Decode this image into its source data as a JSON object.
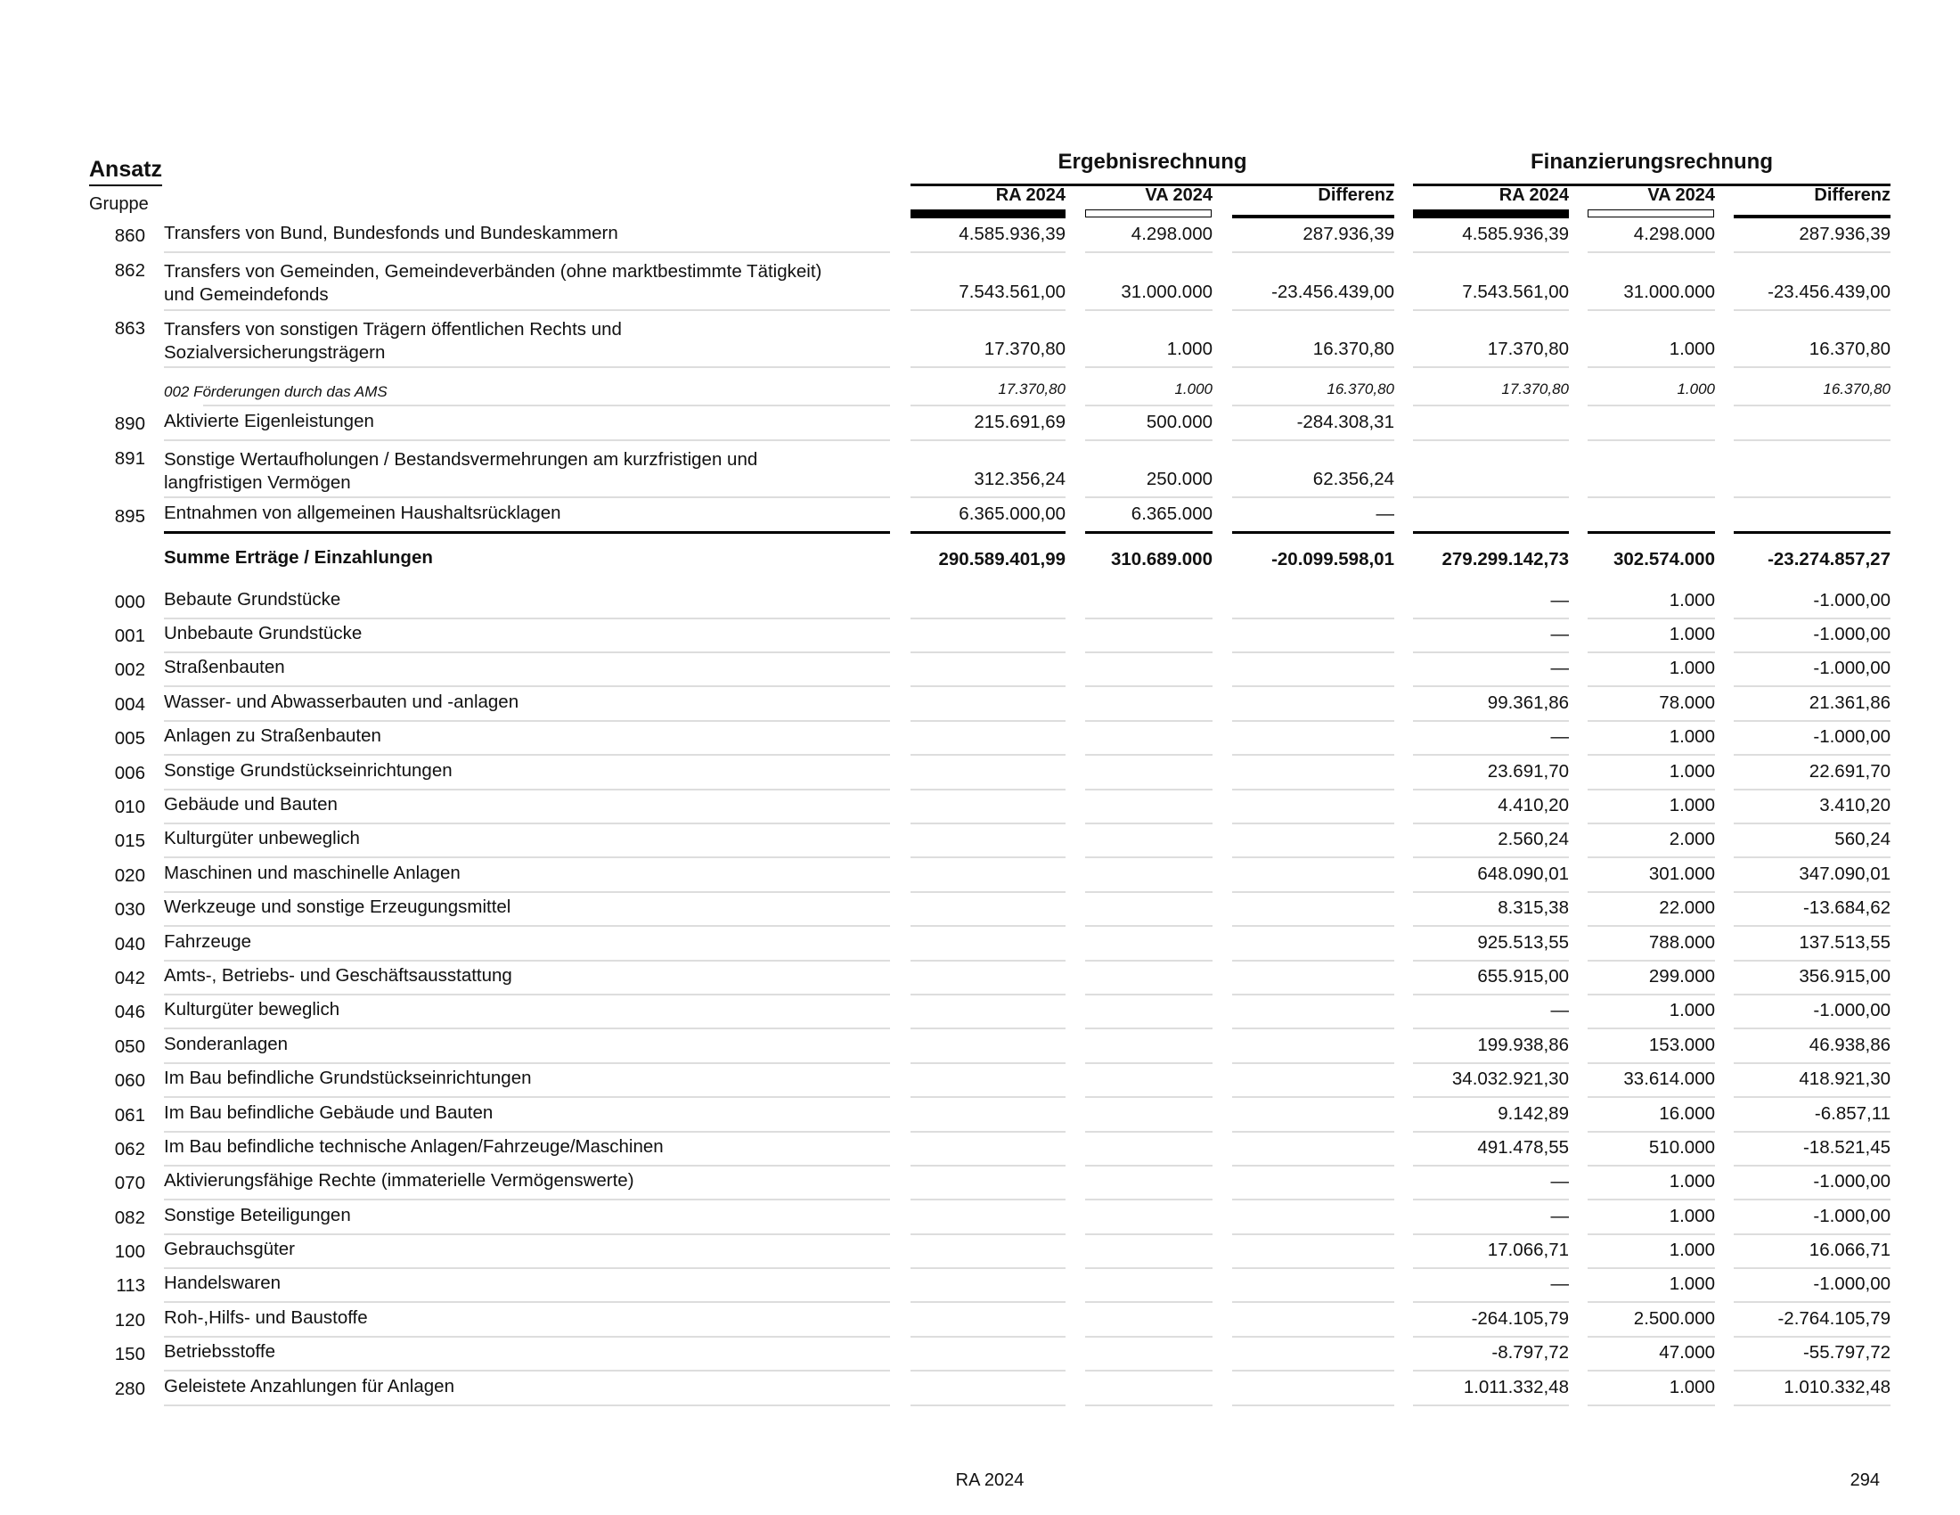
{
  "header": {
    "ansatz": "Ansatz",
    "gruppe": "Gruppe",
    "groups": [
      "Ergebnisrechnung",
      "Finanzierungsrechnung"
    ],
    "columns": [
      "RA 2024",
      "VA 2024",
      "Differenz",
      "RA 2024",
      "VA 2024",
      "Differenz"
    ]
  },
  "rows": [
    {
      "code": "860",
      "lines": [
        "Transfers von Bund, Bundesfonds und Bundeskammern"
      ],
      "values": [
        "4.585.936,39",
        "4.298.000",
        "287.936,39",
        "4.585.936,39",
        "4.298.000",
        "287.936,39"
      ]
    },
    {
      "code": "862",
      "lines": [
        "Transfers von Gemeinden, Gemeindeverbänden (ohne marktbestimmte Tätigkeit)",
        "und Gemeindefonds"
      ],
      "values": [
        "7.543.561,00",
        "31.000.000",
        "-23.456.439,00",
        "7.543.561,00",
        "31.000.000",
        "-23.456.439,00"
      ]
    },
    {
      "code": "863",
      "lines": [
        "Transfers von sonstigen Trägern öffentlichen Rechts und",
        "Sozialversicherungsträgern"
      ],
      "values": [
        "17.370,80",
        "1.000",
        "16.370,80",
        "17.370,80",
        "1.000",
        "16.370,80"
      ]
    },
    {
      "code": "",
      "type": "sub",
      "lines": [
        "002  Förderungen durch das AMS"
      ],
      "values": [
        "17.370,80",
        "1.000",
        "16.370,80",
        "17.370,80",
        "1.000",
        "16.370,80"
      ]
    },
    {
      "code": "890",
      "lines": [
        "Aktivierte Eigenleistungen"
      ],
      "values": [
        "215.691,69",
        "500.000",
        "-284.308,31",
        "",
        "",
        ""
      ]
    },
    {
      "code": "891",
      "lines": [
        "Sonstige Wertaufholungen / Bestandsvermehrungen am kurzfristigen und",
        "langfristigen Vermögen"
      ],
      "values": [
        "312.356,24",
        "250.000",
        "62.356,24",
        "",
        "",
        ""
      ]
    },
    {
      "code": "895",
      "type": "thick",
      "lines": [
        "Entnahmen von allgemeinen Haushaltsrücklagen"
      ],
      "values": [
        "6.365.000,00",
        "6.365.000",
        "—",
        "",
        "",
        ""
      ]
    },
    {
      "code": "",
      "type": "sum",
      "lines": [
        "Summe Erträge / Einzahlungen"
      ],
      "values": [
        "290.589.401,99",
        "310.689.000",
        "-20.099.598,01",
        "279.299.142,73",
        "302.574.000",
        "-23.274.857,27"
      ]
    },
    {
      "code": "000",
      "lines": [
        "Bebaute Grundstücke"
      ],
      "values": [
        "",
        "",
        "",
        "—",
        "1.000",
        "-1.000,00"
      ]
    },
    {
      "code": "001",
      "lines": [
        "Unbebaute Grundstücke"
      ],
      "values": [
        "",
        "",
        "",
        "—",
        "1.000",
        "-1.000,00"
      ]
    },
    {
      "code": "002",
      "lines": [
        "Straßenbauten"
      ],
      "values": [
        "",
        "",
        "",
        "—",
        "1.000",
        "-1.000,00"
      ]
    },
    {
      "code": "004",
      "lines": [
        "Wasser- und Abwasserbauten und -anlagen"
      ],
      "values": [
        "",
        "",
        "",
        "99.361,86",
        "78.000",
        "21.361,86"
      ]
    },
    {
      "code": "005",
      "lines": [
        "Anlagen zu Straßenbauten"
      ],
      "values": [
        "",
        "",
        "",
        "—",
        "1.000",
        "-1.000,00"
      ]
    },
    {
      "code": "006",
      "lines": [
        "Sonstige Grundstückseinrichtungen"
      ],
      "values": [
        "",
        "",
        "",
        "23.691,70",
        "1.000",
        "22.691,70"
      ]
    },
    {
      "code": "010",
      "lines": [
        "Gebäude und Bauten"
      ],
      "values": [
        "",
        "",
        "",
        "4.410,20",
        "1.000",
        "3.410,20"
      ]
    },
    {
      "code": "015",
      "lines": [
        "Kulturgüter unbeweglich"
      ],
      "values": [
        "",
        "",
        "",
        "2.560,24",
        "2.000",
        "560,24"
      ]
    },
    {
      "code": "020",
      "lines": [
        "Maschinen und maschinelle Anlagen"
      ],
      "values": [
        "",
        "",
        "",
        "648.090,01",
        "301.000",
        "347.090,01"
      ]
    },
    {
      "code": "030",
      "lines": [
        "Werkzeuge und sonstige Erzeugungsmittel"
      ],
      "values": [
        "",
        "",
        "",
        "8.315,38",
        "22.000",
        "-13.684,62"
      ]
    },
    {
      "code": "040",
      "lines": [
        "Fahrzeuge"
      ],
      "values": [
        "",
        "",
        "",
        "925.513,55",
        "788.000",
        "137.513,55"
      ]
    },
    {
      "code": "042",
      "lines": [
        "Amts-, Betriebs- und Geschäftsausstattung"
      ],
      "values": [
        "",
        "",
        "",
        "655.915,00",
        "299.000",
        "356.915,00"
      ]
    },
    {
      "code": "046",
      "lines": [
        "Kulturgüter beweglich"
      ],
      "values": [
        "",
        "",
        "",
        "—",
        "1.000",
        "-1.000,00"
      ]
    },
    {
      "code": "050",
      "lines": [
        "Sonderanlagen"
      ],
      "values": [
        "",
        "",
        "",
        "199.938,86",
        "153.000",
        "46.938,86"
      ]
    },
    {
      "code": "060",
      "lines": [
        "Im Bau befindliche Grundstückseinrichtungen"
      ],
      "values": [
        "",
        "",
        "",
        "34.032.921,30",
        "33.614.000",
        "418.921,30"
      ]
    },
    {
      "code": "061",
      "lines": [
        "Im Bau befindliche Gebäude und Bauten"
      ],
      "values": [
        "",
        "",
        "",
        "9.142,89",
        "16.000",
        "-6.857,11"
      ]
    },
    {
      "code": "062",
      "lines": [
        "Im Bau befindliche technische Anlagen/Fahrzeuge/Maschinen"
      ],
      "values": [
        "",
        "",
        "",
        "491.478,55",
        "510.000",
        "-18.521,45"
      ]
    },
    {
      "code": "070",
      "lines": [
        "Aktivierungsfähige Rechte (immaterielle Vermögenswerte)"
      ],
      "values": [
        "",
        "",
        "",
        "—",
        "1.000",
        "-1.000,00"
      ]
    },
    {
      "code": "082",
      "lines": [
        "Sonstige Beteiligungen"
      ],
      "values": [
        "",
        "",
        "",
        "—",
        "1.000",
        "-1.000,00"
      ]
    },
    {
      "code": "100",
      "lines": [
        "Gebrauchsgüter"
      ],
      "values": [
        "",
        "",
        "",
        "17.066,71",
        "1.000",
        "16.066,71"
      ]
    },
    {
      "code": "113",
      "lines": [
        "Handelswaren"
      ],
      "values": [
        "",
        "",
        "",
        "—",
        "1.000",
        "-1.000,00"
      ]
    },
    {
      "code": "120",
      "lines": [
        "Roh-,Hilfs- und Baustoffe"
      ],
      "values": [
        "",
        "",
        "",
        "-264.105,79",
        "2.500.000",
        "-2.764.105,79"
      ]
    },
    {
      "code": "150",
      "lines": [
        "Betriebsstoffe"
      ],
      "values": [
        "",
        "",
        "",
        "-8.797,72",
        "47.000",
        "-55.797,72"
      ]
    },
    {
      "code": "280",
      "lines": [
        "Geleistete Anzahlungen für Anlagen"
      ],
      "values": [
        "",
        "",
        "",
        "1.011.332,48",
        "1.000",
        "1.010.332,48"
      ]
    }
  ],
  "footer": {
    "center": "RA 2024",
    "page": "294"
  }
}
